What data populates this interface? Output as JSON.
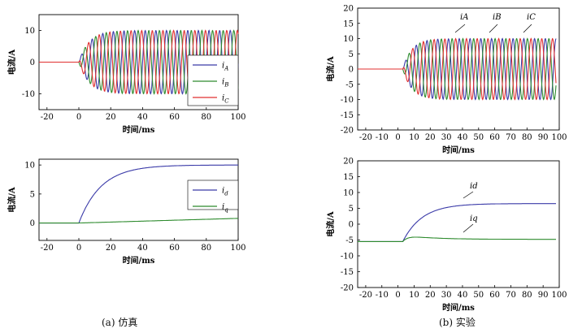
{
  "captions": {
    "left": "(a) 仿真",
    "right": "(b) 实验"
  },
  "colors": {
    "A": "#3a3aa8",
    "B": "#2e8b2e",
    "C": "#e03030",
    "d": "#3a3aa8",
    "q": "#2e8b2e",
    "axis": "#000000"
  },
  "chart_data": [
    {
      "type": "line",
      "panel": "simulation-phase-currents",
      "xlabel": "时间/ms",
      "ylabel": "电流/A",
      "xlim": [
        -25,
        100
      ],
      "ylim": [
        -15,
        15
      ],
      "xticks": [
        -20,
        0,
        20,
        40,
        60,
        80,
        100
      ],
      "yticks": [
        -10,
        0,
        10
      ],
      "legend_position": "right",
      "grid": false,
      "series": [
        {
          "name": "iA",
          "sub": "A",
          "color": "#3a3aa8",
          "kind": "phase",
          "amp": 10,
          "period_ms": 6.67,
          "phase_deg": 0,
          "start_ms": 0,
          "rise_ms": 14,
          "x_from": -25,
          "x_to": 100
        },
        {
          "name": "iB",
          "sub": "B",
          "color": "#2e8b2e",
          "kind": "phase",
          "amp": 10,
          "period_ms": 6.67,
          "phase_deg": -120,
          "start_ms": 0,
          "rise_ms": 14,
          "x_from": -25,
          "x_to": 100
        },
        {
          "name": "iC",
          "sub": "C",
          "color": "#e03030",
          "kind": "phase",
          "amp": 10,
          "period_ms": 6.67,
          "phase_deg": 120,
          "start_ms": 0,
          "rise_ms": 14,
          "x_from": -25,
          "x_to": 100
        }
      ]
    },
    {
      "type": "line",
      "panel": "simulation-dq-currents",
      "xlabel": "时间/ms",
      "ylabel": "电流/A",
      "xlim": [
        -25,
        100
      ],
      "ylim": [
        -3,
        11
      ],
      "xticks": [
        -20,
        0,
        20,
        40,
        60,
        80,
        100
      ],
      "yticks": [
        0,
        5,
        10
      ],
      "legend_position": "right",
      "grid": false,
      "series": [
        {
          "name": "id",
          "sub": "d",
          "color": "#3a3aa8",
          "kind": "rise",
          "final": 10,
          "tau_ms": 14,
          "start_ms": 0,
          "x_from": -25,
          "x_to": 100
        },
        {
          "name": "iq",
          "sub": "q",
          "color": "#2e8b2e",
          "kind": "ramp",
          "final": 0.8,
          "start_ms": 0,
          "end_ms": 100,
          "x_from": -25,
          "x_to": 100
        }
      ]
    },
    {
      "type": "line",
      "panel": "experiment-phase-currents",
      "xlabel": "时间/ms",
      "ylabel": "电流/A",
      "xlim": [
        -25,
        100
      ],
      "ylim": [
        -20,
        20
      ],
      "xticks": [
        -20,
        -10,
        0,
        10,
        20,
        30,
        40,
        50,
        60,
        70,
        80,
        90,
        100
      ],
      "yticks": [
        -20,
        -15,
        -10,
        -5,
        0,
        5,
        10,
        15,
        20
      ],
      "grid": false,
      "annotations": [
        "iA",
        "iB",
        "iC"
      ],
      "series": [
        {
          "name": "iA",
          "color": "#3a3aa8",
          "kind": "phase",
          "amp": 10,
          "period_ms": 6.67,
          "phase_deg": 0,
          "start_ms": 3,
          "rise_ms": 12,
          "x_from": -25,
          "x_to": 98
        },
        {
          "name": "iB",
          "color": "#2e8b2e",
          "kind": "phase",
          "amp": 10,
          "period_ms": 6.67,
          "phase_deg": -120,
          "start_ms": 3,
          "rise_ms": 12,
          "x_from": -25,
          "x_to": 98
        },
        {
          "name": "iC",
          "color": "#e03030",
          "kind": "phase",
          "amp": 10,
          "period_ms": 6.67,
          "phase_deg": 120,
          "start_ms": 3,
          "rise_ms": 12,
          "x_from": -25,
          "x_to": 98
        }
      ]
    },
    {
      "type": "line",
      "panel": "experiment-dq-currents",
      "xlabel": "时间/ms",
      "ylabel": "电流/A",
      "xlim": [
        -25,
        100
      ],
      "ylim": [
        -20,
        20
      ],
      "xticks": [
        -20,
        -10,
        0,
        10,
        20,
        30,
        40,
        50,
        60,
        70,
        80,
        90,
        100
      ],
      "yticks": [
        -20,
        -15,
        -10,
        -5,
        0,
        5,
        10,
        15,
        20
      ],
      "grid": false,
      "annotations": [
        "id",
        "iq"
      ],
      "series": [
        {
          "name": "id",
          "color": "#3a3aa8",
          "kind": "rise",
          "base": -5.5,
          "final": 6.5,
          "tau_ms": 12,
          "start_ms": 3,
          "x_from": -25,
          "x_to": 98
        },
        {
          "name": "iq",
          "color": "#2e8b2e",
          "kind": "bump",
          "base": -5.5,
          "peak": -3.5,
          "final": -4.8,
          "start_ms": 3,
          "x_from": -25,
          "x_to": 98
        }
      ]
    }
  ]
}
